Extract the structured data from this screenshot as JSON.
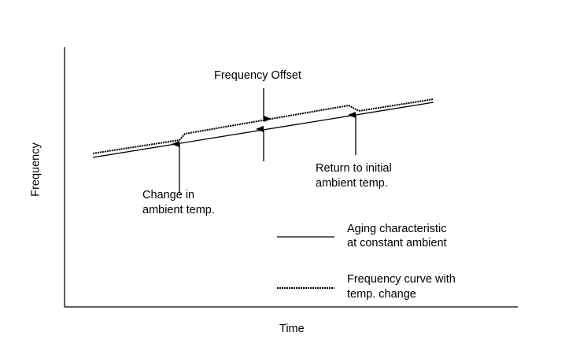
{
  "axes": {
    "y_label": "Frequency",
    "x_label": "Time"
  },
  "annotations": {
    "offset": "Frequency Offset",
    "change_line1": "Change in",
    "change_line2": "ambient temp.",
    "return_line1": "Return to initial",
    "return_line2": "ambient temp."
  },
  "legend": {
    "items": [
      {
        "line1": "Aging characteristic",
        "line2": "at constant ambient",
        "style": "solid"
      },
      {
        "line1": "Frequency curve with",
        "line2": "temp. change",
        "style": "dashed"
      }
    ]
  },
  "colors": {
    "line": "#000000",
    "background": "#ffffff"
  }
}
